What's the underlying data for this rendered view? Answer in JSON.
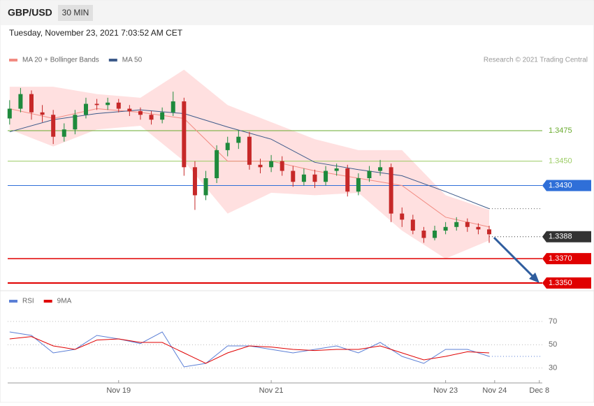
{
  "header": {
    "symbol": "GBP/USD",
    "timeframe": "30 MIN",
    "date": "Tuesday, November 23, 2021 7:03:52 AM CET",
    "credit": "Research © 2021 Trading Central"
  },
  "chart_data": [
    {
      "type": "candlestick",
      "xlim": [
        -0.5,
        49
      ],
      "ylim": [
        1.3342,
        1.353
      ],
      "x": [
        0,
        1,
        2,
        3,
        4,
        5,
        6,
        7,
        8,
        9,
        10,
        11,
        12,
        13,
        14,
        15,
        16,
        17,
        18,
        19,
        20,
        21,
        22,
        23,
        24,
        25,
        26,
        27,
        28,
        29,
        30,
        31,
        32,
        33,
        34,
        35,
        36,
        37,
        38,
        39,
        40,
        41,
        42,
        43,
        44
      ],
      "open": [
        1.3485,
        1.3493,
        1.3505,
        1.349,
        1.3488,
        1.347,
        1.3476,
        1.3488,
        1.3497,
        1.3496,
        1.3498,
        1.3493,
        1.3491,
        1.3488,
        1.3484,
        1.349,
        1.3499,
        1.3445,
        1.3422,
        1.3436,
        1.3459,
        1.3465,
        1.347,
        1.3447,
        1.3445,
        1.345,
        1.3442,
        1.3433,
        1.3439,
        1.3433,
        1.3442,
        1.3444,
        1.3425,
        1.3436,
        1.3442,
        1.3445,
        1.3407,
        1.3402,
        1.3393,
        1.3387,
        1.3393,
        1.3396,
        1.34,
        1.3396,
        1.3394
      ],
      "high": [
        1.35,
        1.351,
        1.3508,
        1.3496,
        1.3492,
        1.3481,
        1.3492,
        1.3502,
        1.3501,
        1.3502,
        1.3501,
        1.3496,
        1.3494,
        1.3491,
        1.3494,
        1.3507,
        1.3502,
        1.345,
        1.3442,
        1.3463,
        1.347,
        1.3475,
        1.3474,
        1.3452,
        1.3455,
        1.3454,
        1.3446,
        1.3444,
        1.3443,
        1.3446,
        1.3448,
        1.3447,
        1.344,
        1.3446,
        1.3451,
        1.3448,
        1.3412,
        1.3406,
        1.3396,
        1.3397,
        1.34,
        1.3404,
        1.3403,
        1.3399,
        1.3397
      ],
      "low": [
        1.348,
        1.349,
        1.3484,
        1.3482,
        1.3464,
        1.3466,
        1.3472,
        1.3485,
        1.3492,
        1.3492,
        1.349,
        1.3487,
        1.3484,
        1.348,
        1.3481,
        1.3487,
        1.3438,
        1.341,
        1.3418,
        1.3432,
        1.3454,
        1.346,
        1.3443,
        1.344,
        1.3441,
        1.3438,
        1.3429,
        1.343,
        1.3428,
        1.343,
        1.3438,
        1.3421,
        1.3422,
        1.3433,
        1.3438,
        1.34,
        1.3396,
        1.339,
        1.3383,
        1.3385,
        1.339,
        1.3393,
        1.3392,
        1.339,
        1.3383
      ],
      "close": [
        1.3493,
        1.3505,
        1.349,
        1.3488,
        1.347,
        1.3476,
        1.3488,
        1.3497,
        1.3496,
        1.3498,
        1.3493,
        1.3491,
        1.3488,
        1.3484,
        1.349,
        1.3499,
        1.3445,
        1.3422,
        1.3436,
        1.3459,
        1.3465,
        1.347,
        1.3447,
        1.3445,
        1.345,
        1.3442,
        1.3433,
        1.3439,
        1.3433,
        1.3442,
        1.3444,
        1.3425,
        1.3436,
        1.3442,
        1.3445,
        1.3407,
        1.3402,
        1.3393,
        1.3387,
        1.3393,
        1.3396,
        1.34,
        1.3396,
        1.3394,
        1.339
      ],
      "up_color": "#1e8a3c",
      "down_color": "#c62828",
      "series": [
        {
          "name": "MA 20 + Bollinger Bands",
          "color": "#f28b82",
          "band_color": "#ffdada",
          "x": [
            0,
            4,
            8,
            12,
            16,
            20,
            24,
            28,
            32,
            36,
            40,
            44
          ],
          "values": [
            1.3493,
            1.3485,
            1.3493,
            1.349,
            1.3485,
            1.345,
            1.345,
            1.3442,
            1.3436,
            1.343,
            1.3404,
            1.3396
          ],
          "upper": [
            1.3511,
            1.3511,
            1.3505,
            1.3502,
            1.3525,
            1.3496,
            1.3482,
            1.3468,
            1.3459,
            1.3459,
            1.3422,
            1.341
          ],
          "lower": [
            1.3476,
            1.3462,
            1.3476,
            1.3479,
            1.345,
            1.3407,
            1.3424,
            1.3422,
            1.3424,
            1.3393,
            1.337,
            1.3385
          ]
        },
        {
          "name": "MA 50",
          "color": "#3d5a8a",
          "x": [
            0,
            4,
            8,
            12,
            16,
            20,
            24,
            28,
            32,
            36,
            40,
            44
          ],
          "values": [
            1.3474,
            1.3484,
            1.3489,
            1.3492,
            1.3489,
            1.3478,
            1.3468,
            1.3449,
            1.3443,
            1.3438,
            1.3425,
            1.3411
          ]
        }
      ],
      "levels": [
        {
          "value": 1.3475,
          "label": "1.3475",
          "color": "#6aab2e",
          "boxed": false,
          "dotted": false,
          "width": 1
        },
        {
          "value": 1.345,
          "label": "1.3450",
          "color": "#9ccc65",
          "boxed": false,
          "dotted": false,
          "width": 1
        },
        {
          "value": 1.343,
          "label": "1.3430",
          "color": "#2f6fd8",
          "boxed": true,
          "dotted": false,
          "width": 1
        },
        {
          "value": 1.3388,
          "label": "1.3388",
          "color": "#333333",
          "boxed": true,
          "dotted": true,
          "width": 1
        },
        {
          "value": 1.337,
          "label": "1.3370",
          "color": "#e00000",
          "boxed": true,
          "dotted": false,
          "width": 1.5
        },
        {
          "value": 1.335,
          "label": "1.3350",
          "color": "#e00000",
          "boxed": true,
          "dotted": false,
          "width": 2
        }
      ]
    },
    {
      "type": "line",
      "xlim": [
        -0.5,
        49
      ],
      "ylim": [
        19,
        82
      ],
      "yticks": [
        30,
        50,
        70
      ],
      "grid": true,
      "xticks": [
        {
          "value": 10,
          "label": "Nov 19"
        },
        {
          "value": 24,
          "label": "Nov 21"
        },
        {
          "value": 40,
          "label": "Nov 23"
        },
        {
          "value": 44.5,
          "label": "Nov 24"
        },
        {
          "value": 48.6,
          "label": "Dec 8"
        }
      ],
      "series": [
        {
          "name": "RSI",
          "color": "#5b7fd6",
          "x": [
            0,
            2,
            4,
            6,
            8,
            10,
            12,
            14,
            16,
            18,
            20,
            22,
            24,
            26,
            28,
            30,
            32,
            34,
            36,
            38,
            40,
            42,
            44
          ],
          "values": [
            61,
            58,
            43,
            46,
            58,
            55,
            51,
            61,
            31,
            34,
            49,
            49,
            46,
            43,
            46,
            49,
            43,
            52,
            40,
            34,
            46,
            46,
            40
          ]
        },
        {
          "name": "9MA",
          "color": "#e00000",
          "x": [
            0,
            2,
            4,
            6,
            8,
            10,
            12,
            14,
            16,
            18,
            20,
            22,
            24,
            26,
            28,
            30,
            32,
            34,
            36,
            38,
            40,
            42,
            44
          ],
          "values": [
            55,
            57,
            49,
            46,
            54,
            55,
            52,
            52,
            43,
            34,
            43,
            49,
            48,
            46,
            45,
            46,
            46,
            49,
            43,
            37,
            40,
            44,
            43
          ]
        }
      ]
    }
  ]
}
